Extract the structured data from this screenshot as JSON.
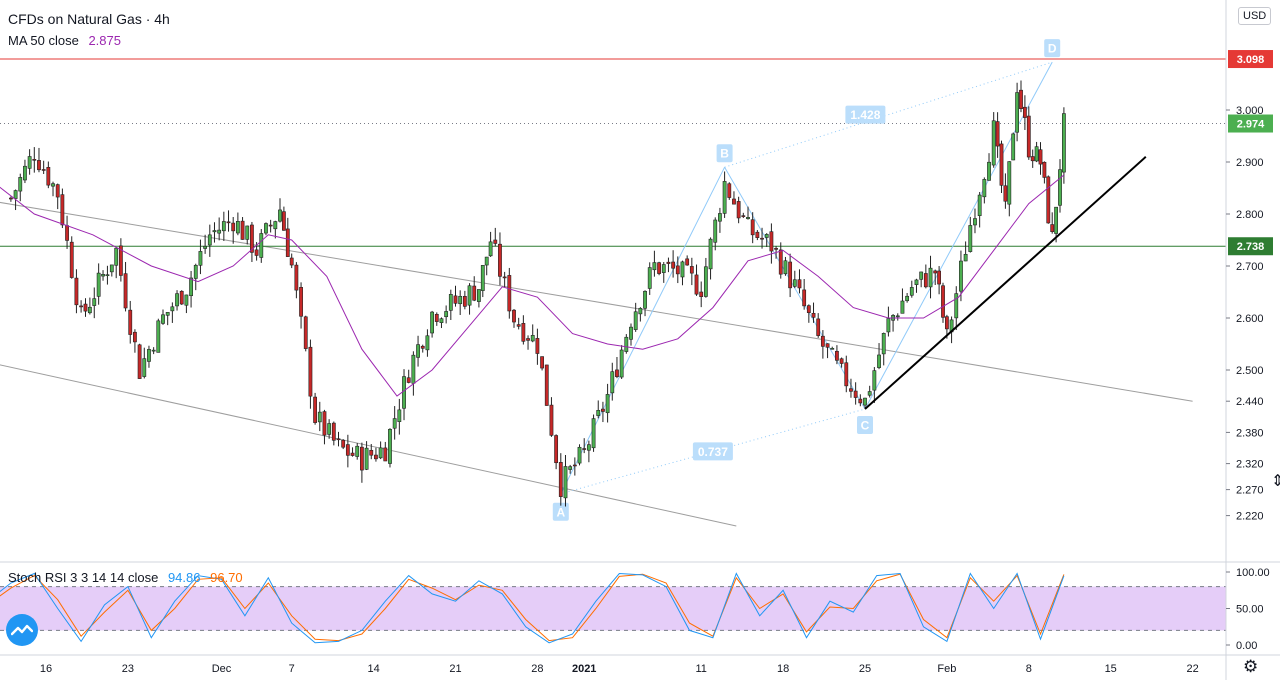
{
  "header": {
    "symbol_title": "CFDs on Natural Gas · 4h",
    "ma_label": "MA 50 close",
    "ma_value": "2.875",
    "currency": "USD"
  },
  "stoch": {
    "label": "Stoch RSI 3 3 14 14 close",
    "k_value": "94.86",
    "d_value": "96.70"
  },
  "colors": {
    "up_candle": "#4caf50",
    "down_candle": "#c62828",
    "ma_line": "#9c27b0",
    "resistance": "#e53935",
    "support": "#2e7d32",
    "trendline": "#000000",
    "channel": "#9e9e9e",
    "pattern": "#90caf9",
    "stoch_k": "#2196f3",
    "stoch_d": "#ff6d00",
    "stoch_band": "#e1c4f7"
  },
  "icons": {
    "logo": "tradingview-logo-icon",
    "settings": "gear-icon",
    "cursor": "cursor-icon"
  },
  "chart_data": [
    {
      "type": "candlestick",
      "x_ticks": [
        "16",
        "23",
        "Dec",
        "7",
        "14",
        "21",
        "28",
        "2021",
        "11",
        "18",
        "25",
        "Feb",
        "8",
        "15",
        "22"
      ],
      "y_ticks": [
        "3.000",
        "2.900",
        "2.800",
        "2.700",
        "2.600",
        "2.500",
        "2.440",
        "2.380",
        "2.320",
        "2.270",
        "2.220"
      ],
      "price_labels": {
        "resistance": {
          "value": 3.098,
          "text": "3.098"
        },
        "last": {
          "value": 2.974,
          "text": "2.974"
        },
        "support": {
          "value": 2.738,
          "text": "2.738"
        }
      },
      "horizontal_lines": [
        {
          "name": "resistance",
          "value": 3.098
        },
        {
          "name": "support",
          "value": 2.738
        }
      ],
      "abcd_pattern": {
        "points": [
          {
            "label": "A",
            "x": "Dec 30",
            "value": 2.262
          },
          {
            "label": "B",
            "x": "Jan 13",
            "value": 2.89
          },
          {
            "label": "C",
            "x": "Jan 25",
            "value": 2.425
          },
          {
            "label": "D",
            "x": "Feb 10",
            "value": 3.092
          }
        ],
        "ratios": [
          "1.428",
          "0.737"
        ]
      },
      "trendline": {
        "from": {
          "x": "Jan 25",
          "value": 2.425
        },
        "to": {
          "x": "Feb 18",
          "value": 2.91
        }
      },
      "descending_channel": {
        "upper": [
          {
            "x": "Nov 10",
            "value": 2.83
          },
          {
            "x": "Feb 22",
            "value": 2.44
          }
        ],
        "lower": [
          {
            "x": "Nov 10",
            "value": 2.52
          },
          {
            "x": "Jan 14",
            "value": 2.2
          }
        ]
      },
      "close_path": [
        {
          "x": "Nov 13",
          "value": 2.83
        },
        {
          "x": "Nov 15",
          "value": 2.92
        },
        {
          "x": "Nov 17",
          "value": 2.84
        },
        {
          "x": "Nov 19",
          "value": 2.6
        },
        {
          "x": "Nov 22",
          "value": 2.73
        },
        {
          "x": "Nov 24",
          "value": 2.5
        },
        {
          "x": "Nov 26",
          "value": 2.6
        },
        {
          "x": "Nov 28",
          "value": 2.66
        },
        {
          "x": "Nov 30",
          "value": 2.76
        },
        {
          "x": "Dec 2",
          "value": 2.79
        },
        {
          "x": "Dec 4",
          "value": 2.73
        },
        {
          "x": "Dec 6",
          "value": 2.81
        },
        {
          "x": "Dec 7",
          "value": 2.7
        },
        {
          "x": "Dec 9",
          "value": 2.41
        },
        {
          "x": "Dec 11",
          "value": 2.35
        },
        {
          "x": "Dec 13",
          "value": 2.33
        },
        {
          "x": "Dec 15",
          "value": 2.35
        },
        {
          "x": "Dec 17",
          "value": 2.5
        },
        {
          "x": "Dec 19",
          "value": 2.61
        },
        {
          "x": "Dec 21",
          "value": 2.63
        },
        {
          "x": "Dec 23",
          "value": 2.66
        },
        {
          "x": "Dec 24",
          "value": 2.75
        },
        {
          "x": "Dec 26",
          "value": 2.6
        },
        {
          "x": "Dec 28",
          "value": 2.55
        },
        {
          "x": "Dec 30",
          "value": 2.28
        },
        {
          "x": "Jan 1",
          "value": 2.34
        },
        {
          "x": "Jan 3",
          "value": 2.45
        },
        {
          "x": "Jan 5",
          "value": 2.6
        },
        {
          "x": "Jan 7",
          "value": 2.7
        },
        {
          "x": "Jan 9",
          "value": 2.69
        },
        {
          "x": "Jan 11",
          "value": 2.66
        },
        {
          "x": "Jan 13",
          "value": 2.86
        },
        {
          "x": "Jan 15",
          "value": 2.77
        },
        {
          "x": "Jan 17",
          "value": 2.74
        },
        {
          "x": "Jan 19",
          "value": 2.66
        },
        {
          "x": "Jan 21",
          "value": 2.56
        },
        {
          "x": "Jan 23",
          "value": 2.49
        },
        {
          "x": "Jan 25",
          "value": 2.44
        },
        {
          "x": "Jan 27",
          "value": 2.59
        },
        {
          "x": "Jan 29",
          "value": 2.66
        },
        {
          "x": "Jan 31",
          "value": 2.69
        },
        {
          "x": "Feb 1",
          "value": 2.56
        },
        {
          "x": "Feb 3",
          "value": 2.78
        },
        {
          "x": "Feb 5",
          "value": 2.96
        },
        {
          "x": "Feb 6",
          "value": 2.8
        },
        {
          "x": "Feb 7",
          "value": 3.05
        },
        {
          "x": "Feb 8",
          "value": 2.93
        },
        {
          "x": "Feb 9",
          "value": 2.9
        },
        {
          "x": "Feb 10",
          "value": 2.75
        },
        {
          "x": "Feb 11",
          "value": 2.97
        }
      ],
      "ma50_path": [
        {
          "x": "Nov 11",
          "value": 2.87
        },
        {
          "x": "Nov 15",
          "value": 2.8
        },
        {
          "x": "Nov 20",
          "value": 2.76
        },
        {
          "x": "Nov 25",
          "value": 2.7
        },
        {
          "x": "Nov 29",
          "value": 2.67
        },
        {
          "x": "Dec 2",
          "value": 2.7
        },
        {
          "x": "Dec 5",
          "value": 2.76
        },
        {
          "x": "Dec 7",
          "value": 2.75
        },
        {
          "x": "Dec 10",
          "value": 2.68
        },
        {
          "x": "Dec 13",
          "value": 2.54
        },
        {
          "x": "Dec 16",
          "value": 2.45
        },
        {
          "x": "Dec 19",
          "value": 2.5
        },
        {
          "x": "Dec 22",
          "value": 2.58
        },
        {
          "x": "Dec 25",
          "value": 2.66
        },
        {
          "x": "Dec 28",
          "value": 2.64
        },
        {
          "x": "Dec 31",
          "value": 2.57
        },
        {
          "x": "Jan 3",
          "value": 2.55
        },
        {
          "x": "Jan 6",
          "value": 2.54
        },
        {
          "x": "Jan 9",
          "value": 2.56
        },
        {
          "x": "Jan 12",
          "value": 2.62
        },
        {
          "x": "Jan 15",
          "value": 2.71
        },
        {
          "x": "Jan 18",
          "value": 2.73
        },
        {
          "x": "Jan 21",
          "value": 2.68
        },
        {
          "x": "Jan 24",
          "value": 2.62
        },
        {
          "x": "Jan 27",
          "value": 2.6
        },
        {
          "x": "Jan 30",
          "value": 2.6
        },
        {
          "x": "Feb 2",
          "value": 2.64
        },
        {
          "x": "Feb 5",
          "value": 2.73
        },
        {
          "x": "Feb 8",
          "value": 2.82
        },
        {
          "x": "Feb 11",
          "value": 2.875
        }
      ]
    },
    {
      "type": "line",
      "title": "Stoch RSI 3 3 14 14 close",
      "y_ticks": [
        "100.00",
        "50.00",
        "0.00"
      ],
      "ylim": [
        0,
        100
      ],
      "bands": [
        20,
        80
      ],
      "series": [
        {
          "name": "K",
          "last": 94.86
        },
        {
          "name": "D",
          "last": 96.7
        }
      ],
      "k_path": [
        {
          "x": "Nov 11",
          "value": 60
        },
        {
          "x": "Nov 13",
          "value": 85
        },
        {
          "x": "Nov 15",
          "value": 98
        },
        {
          "x": "Nov 17",
          "value": 50
        },
        {
          "x": "Nov 19",
          "value": 5
        },
        {
          "x": "Nov 21",
          "value": 55
        },
        {
          "x": "Nov 23",
          "value": 80
        },
        {
          "x": "Nov 25",
          "value": 10
        },
        {
          "x": "Nov 27",
          "value": 60
        },
        {
          "x": "Nov 29",
          "value": 95
        },
        {
          "x": "Dec 1",
          "value": 90
        },
        {
          "x": "Dec 3",
          "value": 40
        },
        {
          "x": "Dec 5",
          "value": 92
        },
        {
          "x": "Dec 7",
          "value": 30
        },
        {
          "x": "Dec 9",
          "value": 3
        },
        {
          "x": "Dec 11",
          "value": 5
        },
        {
          "x": "Dec 13",
          "value": 20
        },
        {
          "x": "Dec 15",
          "value": 60
        },
        {
          "x": "Dec 17",
          "value": 95
        },
        {
          "x": "Dec 19",
          "value": 70
        },
        {
          "x": "Dec 21",
          "value": 60
        },
        {
          "x": "Dec 23",
          "value": 88
        },
        {
          "x": "Dec 25",
          "value": 70
        },
        {
          "x": "Dec 27",
          "value": 25
        },
        {
          "x": "Dec 29",
          "value": 3
        },
        {
          "x": "Dec 31",
          "value": 15
        },
        {
          "x": "Jan 2",
          "value": 60
        },
        {
          "x": "Jan 4",
          "value": 98
        },
        {
          "x": "Jan 6",
          "value": 96
        },
        {
          "x": "Jan 8",
          "value": 80
        },
        {
          "x": "Jan 10",
          "value": 20
        },
        {
          "x": "Jan 12",
          "value": 10
        },
        {
          "x": "Jan 14",
          "value": 98
        },
        {
          "x": "Jan 16",
          "value": 40
        },
        {
          "x": "Jan 18",
          "value": 75
        },
        {
          "x": "Jan 20",
          "value": 10
        },
        {
          "x": "Jan 22",
          "value": 60
        },
        {
          "x": "Jan 24",
          "value": 45
        },
        {
          "x": "Jan 26",
          "value": 95
        },
        {
          "x": "Jan 28",
          "value": 98
        },
        {
          "x": "Jan 30",
          "value": 25
        },
        {
          "x": "Feb 1",
          "value": 5
        },
        {
          "x": "Feb 3",
          "value": 98
        },
        {
          "x": "Feb 5",
          "value": 50
        },
        {
          "x": "Feb 7",
          "value": 98
        },
        {
          "x": "Feb 9",
          "value": 8
        },
        {
          "x": "Feb 11",
          "value": 94.86
        }
      ],
      "d_path": [
        {
          "x": "Nov 11",
          "value": 55
        },
        {
          "x": "Nov 13",
          "value": 78
        },
        {
          "x": "Nov 15",
          "value": 95
        },
        {
          "x": "Nov 17",
          "value": 62
        },
        {
          "x": "Nov 19",
          "value": 12
        },
        {
          "x": "Nov 21",
          "value": 45
        },
        {
          "x": "Nov 23",
          "value": 75
        },
        {
          "x": "Nov 25",
          "value": 20
        },
        {
          "x": "Nov 27",
          "value": 50
        },
        {
          "x": "Nov 29",
          "value": 90
        },
        {
          "x": "Dec 1",
          "value": 92
        },
        {
          "x": "Dec 3",
          "value": 50
        },
        {
          "x": "Dec 5",
          "value": 85
        },
        {
          "x": "Dec 7",
          "value": 40
        },
        {
          "x": "Dec 9",
          "value": 8
        },
        {
          "x": "Dec 11",
          "value": 6
        },
        {
          "x": "Dec 13",
          "value": 15
        },
        {
          "x": "Dec 15",
          "value": 50
        },
        {
          "x": "Dec 17",
          "value": 90
        },
        {
          "x": "Dec 19",
          "value": 78
        },
        {
          "x": "Dec 21",
          "value": 62
        },
        {
          "x": "Dec 23",
          "value": 82
        },
        {
          "x": "Dec 25",
          "value": 75
        },
        {
          "x": "Dec 27",
          "value": 35
        },
        {
          "x": "Dec 29",
          "value": 6
        },
        {
          "x": "Dec 31",
          "value": 10
        },
        {
          "x": "Jan 2",
          "value": 50
        },
        {
          "x": "Jan 4",
          "value": 94
        },
        {
          "x": "Jan 6",
          "value": 97
        },
        {
          "x": "Jan 8",
          "value": 85
        },
        {
          "x": "Jan 10",
          "value": 30
        },
        {
          "x": "Jan 12",
          "value": 12
        },
        {
          "x": "Jan 14",
          "value": 92
        },
        {
          "x": "Jan 16",
          "value": 50
        },
        {
          "x": "Jan 18",
          "value": 70
        },
        {
          "x": "Jan 20",
          "value": 18
        },
        {
          "x": "Jan 22",
          "value": 52
        },
        {
          "x": "Jan 24",
          "value": 50
        },
        {
          "x": "Jan 26",
          "value": 88
        },
        {
          "x": "Jan 28",
          "value": 97
        },
        {
          "x": "Jan 30",
          "value": 35
        },
        {
          "x": "Feb 1",
          "value": 10
        },
        {
          "x": "Feb 3",
          "value": 92
        },
        {
          "x": "Feb 5",
          "value": 60
        },
        {
          "x": "Feb 7",
          "value": 95
        },
        {
          "x": "Feb 9",
          "value": 15
        },
        {
          "x": "Feb 11",
          "value": 96.7
        }
      ]
    }
  ]
}
